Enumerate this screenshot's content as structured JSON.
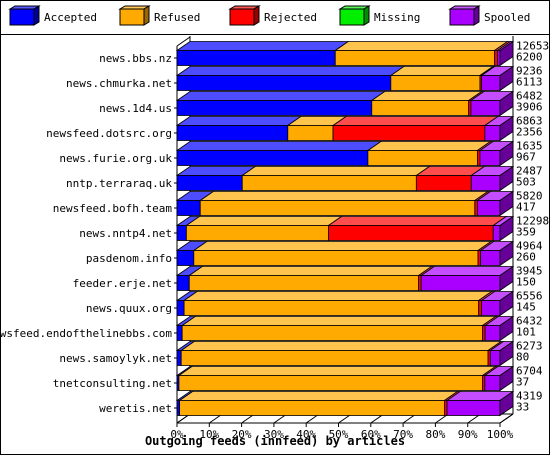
{
  "chart_data": {
    "type": "bar",
    "stacked": true,
    "orientation": "horizontal",
    "style": "3d",
    "title": "",
    "xlabel": "Outgoing feeds (innfeed) by articles",
    "ylabel": "",
    "xlim": [
      0,
      100
    ],
    "x_unit": "%",
    "x_ticks": [
      "0%",
      "10%",
      "20%",
      "30%",
      "40%",
      "50%",
      "60%",
      "70%",
      "80%",
      "90%",
      "100%"
    ],
    "grid": false,
    "legend_position": "top",
    "categories": [
      "news.bbs.nz",
      "news.chmurka.net",
      "news.1d4.us",
      "newsfeed.dotsrc.org",
      "news.furie.org.uk",
      "nntp.terraraq.uk",
      "newsfeed.bofh.team",
      "news.nntp4.net",
      "pasdenom.info",
      "feeder.erje.net",
      "news.quux.org",
      "newsfeed.endofthelinebbs.com",
      "news.samoylyk.net",
      "tnetconsulting.net",
      "weretis.net"
    ],
    "offered_labels": [
      "12653",
      "9236",
      "6482",
      "6863",
      "1635",
      "2487",
      "5820",
      "12298",
      "4964",
      "3945",
      "6556",
      "6432",
      "6273",
      "6704",
      "4319"
    ],
    "accepted_labels": [
      "6200",
      "6113",
      "3906",
      "2356",
      "967",
      "503",
      "417",
      "359",
      "260",
      "150",
      "145",
      "101",
      "80",
      "37",
      "33"
    ],
    "series": [
      {
        "name": "Accepted",
        "color": "#0000ff",
        "values": [
          49.0,
          66.2,
          60.3,
          34.3,
          59.1,
          20.2,
          7.2,
          2.9,
          5.2,
          3.8,
          2.2,
          1.6,
          1.3,
          0.6,
          0.8
        ]
      },
      {
        "name": "Refused",
        "color": "#ffaa00",
        "values": [
          49.3,
          27.6,
          30.0,
          14.0,
          33.9,
          53.9,
          85.0,
          44.0,
          88.0,
          71.0,
          91.2,
          93.0,
          95.0,
          94.0,
          82.0
        ]
      },
      {
        "name": "Rejected",
        "color": "#ff0000",
        "values": [
          0.9,
          0.5,
          0.7,
          47.0,
          0.8,
          17.0,
          0.8,
          51.0,
          0.8,
          0.8,
          0.9,
          0.8,
          0.7,
          0.7,
          0.8
        ]
      },
      {
        "name": "Missing",
        "color": "#00ee00",
        "values": [
          0,
          0,
          0,
          0,
          0,
          0,
          0,
          0,
          0,
          0,
          0,
          0,
          0,
          0,
          0
        ]
      },
      {
        "name": "Spooled",
        "color": "#aa00ff",
        "values": [
          0.8,
          5.7,
          9.0,
          4.7,
          6.2,
          8.9,
          7.0,
          2.1,
          6.0,
          24.4,
          5.7,
          4.6,
          3.0,
          4.7,
          16.4
        ]
      }
    ]
  }
}
